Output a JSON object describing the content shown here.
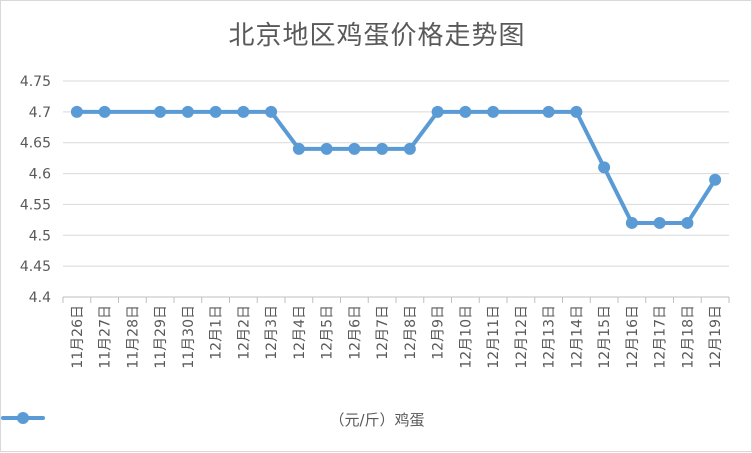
{
  "chart_data": {
    "type": "line",
    "title": "北京地区鸡蛋价格走势图",
    "categories": [
      "11月26日",
      "11月27日",
      "11月28日",
      "11月29日",
      "11月30日",
      "12月1日",
      "12月2日",
      "12月3日",
      "12月4日",
      "12月5日",
      "12月6日",
      "12月7日",
      "12月8日",
      "12月9日",
      "12月10日",
      "12月11日",
      "12月12日",
      "12月13日",
      "12月14日",
      "12月15日",
      "12月16日",
      "12月17日",
      "12月18日",
      "12月19日"
    ],
    "series": [
      {
        "name": "（元/斤）鸡蛋",
        "values": [
          4.7,
          4.7,
          null,
          4.7,
          4.7,
          4.7,
          4.7,
          4.7,
          4.64,
          4.64,
          4.64,
          4.64,
          4.64,
          4.7,
          4.7,
          4.7,
          null,
          4.7,
          4.7,
          4.61,
          4.52,
          4.52,
          4.52,
          4.59
        ],
        "color": "#5b9bd5"
      }
    ],
    "yticks": [
      "4.4",
      "4.45",
      "4.5",
      "4.55",
      "4.6",
      "4.65",
      "4.7",
      "4.75"
    ],
    "ylim": [
      4.4,
      4.75
    ],
    "grid": true,
    "legend": "bottom"
  }
}
